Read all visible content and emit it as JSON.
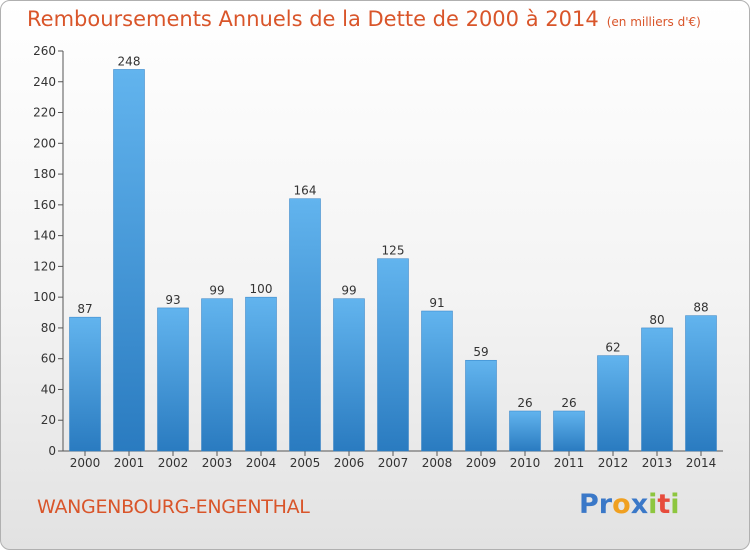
{
  "chart_data": {
    "type": "bar",
    "title": "Remboursements Annuels de la Dette de 2000 à 2014",
    "title_unit": "(en milliers d'€)",
    "categories": [
      "2000",
      "2001",
      "2002",
      "2003",
      "2004",
      "2005",
      "2006",
      "2007",
      "2008",
      "2009",
      "2010",
      "2011",
      "2012",
      "2013",
      "2014"
    ],
    "values": [
      87,
      248,
      93,
      99,
      100,
      164,
      99,
      125,
      91,
      59,
      26,
      26,
      62,
      80,
      88
    ],
    "ylim": [
      0,
      260
    ],
    "yticks": [
      0,
      20,
      40,
      60,
      80,
      100,
      120,
      140,
      160,
      180,
      200,
      220,
      240,
      260
    ],
    "grid": false,
    "bar_color": "#4a9fdf",
    "bar_color_dark": "#2f7fc4"
  },
  "commune": "WANGENBOURG-ENGENTHAL",
  "logo": {
    "letters": [
      "P",
      "r",
      "o",
      "x",
      "i",
      "t",
      "i"
    ],
    "colors": [
      "#3a78c8",
      "#3a78c8",
      "#f0a020",
      "#3a78c8",
      "#8dc63f",
      "#e74c3c",
      "#8dc63f"
    ]
  }
}
